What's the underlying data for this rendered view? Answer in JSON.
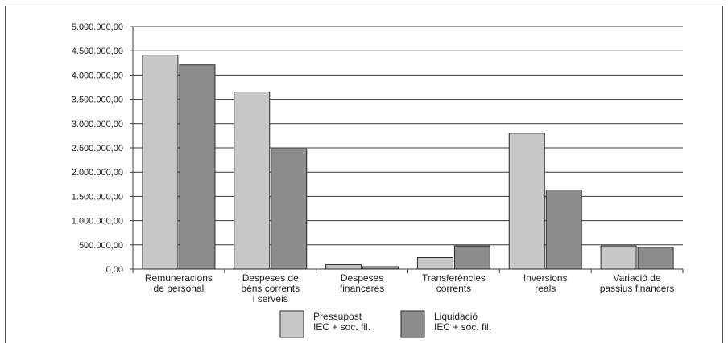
{
  "chart_data": {
    "type": "bar",
    "title": "",
    "xlabel": "",
    "ylabel": "",
    "ylim": [
      0,
      5000000
    ],
    "yticks": [
      "0,00",
      "500.000,00",
      "1.000.000,00",
      "1.500.000,00",
      "2.000.000,00",
      "2.500.000,00",
      "3.000.000,00",
      "3.500.000,00",
      "4.000.000,00",
      "4.500.000,00",
      "5.000.000,00"
    ],
    "grid": true,
    "legend_position": "bottom-center",
    "categories": [
      [
        "Remuneracions",
        "de personal"
      ],
      [
        "Despeses de",
        "béns corrents",
        "i serveis"
      ],
      [
        "Despeses",
        "financeres"
      ],
      [
        "Transferències",
        "corrents"
      ],
      [
        "Inversions",
        "reals"
      ],
      [
        "Variació de",
        "passius financers"
      ]
    ],
    "series": [
      {
        "name": [
          "Pressupost",
          "IEC + soc. fil."
        ],
        "color": "#c8c8c8",
        "values": [
          4410000,
          3650000,
          90000,
          240000,
          2800000,
          480000
        ]
      },
      {
        "name": [
          "Liquidació",
          "IEC + soc. fil."
        ],
        "color": "#8c8c8c",
        "values": [
          4210000,
          2480000,
          50000,
          480000,
          1630000,
          450000
        ]
      }
    ]
  }
}
